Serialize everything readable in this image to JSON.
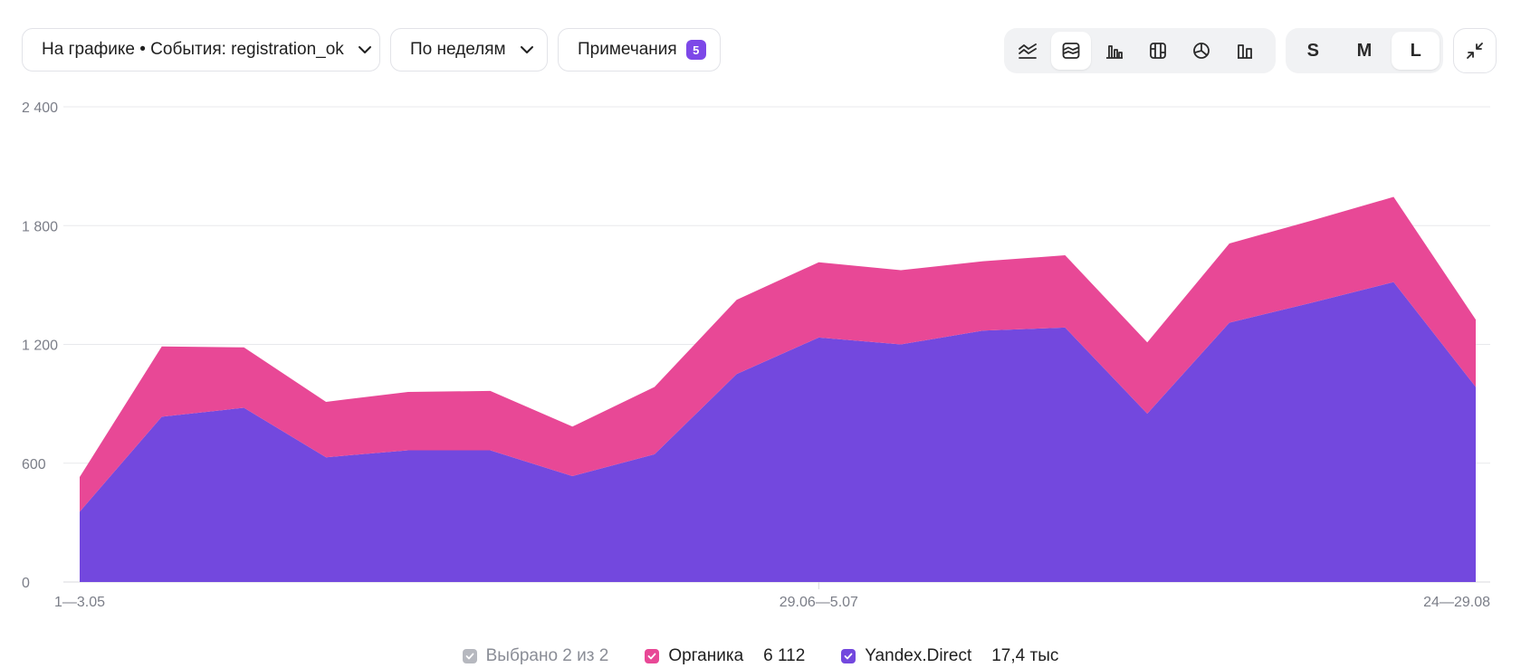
{
  "toolbar": {
    "metric_label": "На графике • События: registration_ok",
    "period_label": "По неделям",
    "notes_label": "Примечания",
    "notes_count": "5",
    "chart_types": [
      "line-chart-icon",
      "stacked-area-chart-icon",
      "bar-chart-icon",
      "table-chart-icon",
      "pie-chart-icon",
      "column-chart-icon"
    ],
    "active_chart_type": "stacked-area-chart-icon",
    "sizes": [
      "S",
      "M",
      "L"
    ],
    "active_size": "L"
  },
  "legend": {
    "selected_label": "Выбрано 2 из 2",
    "items": [
      {
        "name": "Органика",
        "total": "6 112",
        "color": "#e84896"
      },
      {
        "name": "Yandex.Direct",
        "total": "17,4 тыс",
        "color": "#7348de"
      }
    ]
  },
  "chart_data": {
    "type": "area",
    "stacked": true,
    "y_ticks": [
      "0",
      "600",
      "1 200",
      "1 800",
      "2 400"
    ],
    "ylim": [
      0,
      2400
    ],
    "x_tick_labels": [
      {
        "index": 0,
        "label": "1—3.05"
      },
      {
        "index": 9,
        "label": "29.06—5.07"
      },
      {
        "index": 17,
        "label": "24—29.08"
      }
    ],
    "series": [
      {
        "name": "Yandex.Direct",
        "color": "#7348de",
        "values": [
          355,
          835,
          880,
          630,
          665,
          665,
          535,
          645,
          1050,
          1235,
          1200,
          1270,
          1285,
          850,
          1310,
          1410,
          1515,
          985
        ]
      },
      {
        "name": "Органика",
        "color": "#e84896",
        "values": [
          175,
          355,
          305,
          280,
          295,
          300,
          250,
          340,
          375,
          380,
          375,
          350,
          365,
          360,
          400,
          415,
          430,
          340
        ]
      }
    ],
    "grid": true,
    "legend_position": "bottom"
  },
  "colors": {
    "accent": "#7d48e8",
    "organic": "#e84896",
    "direct": "#7348de"
  }
}
